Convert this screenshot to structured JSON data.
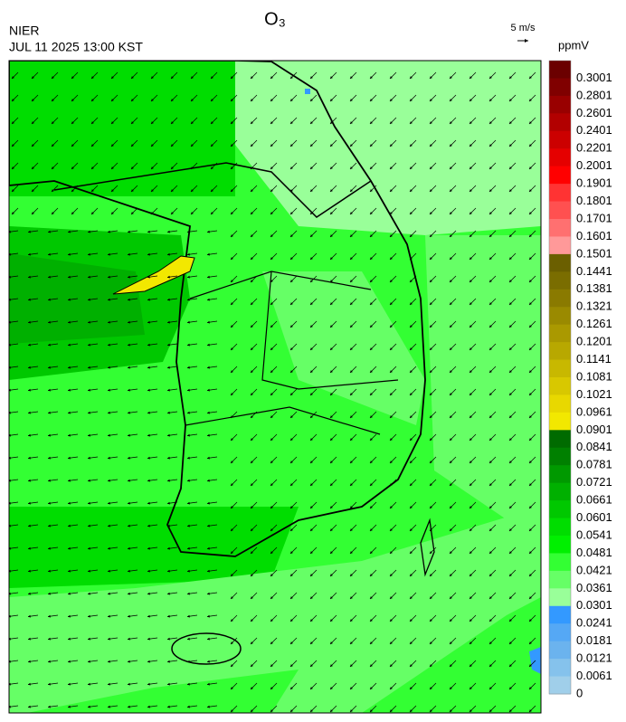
{
  "header": {
    "title": "O₃",
    "agency": "NIER",
    "timestamp": "JUL 11 2025 13:00 KST",
    "wind_scale": "5 m/s"
  },
  "colorbar": {
    "unit": "ppmV",
    "levels": [
      0.3001,
      0.2801,
      0.2601,
      0.2401,
      0.2201,
      0.2001,
      0.1901,
      0.1801,
      0.1701,
      0.1601,
      0.1501,
      0.1441,
      0.1381,
      0.1321,
      0.1261,
      0.1201,
      0.1141,
      0.1081,
      0.1021,
      0.0961,
      0.0901,
      0.0841,
      0.0781,
      0.0721,
      0.0661,
      0.0601,
      0.0541,
      0.0481,
      0.0421,
      0.0361,
      0.0301,
      0.0241,
      0.0181,
      0.0121,
      0.0061,
      0
    ],
    "colors": [
      "#6b0000",
      "#800000",
      "#990000",
      "#b20000",
      "#cc0000",
      "#e50000",
      "#ff0000",
      "#ff3333",
      "#ff5050",
      "#ff7070",
      "#ff9999",
      "#6b5f00",
      "#7a6d00",
      "#8a7a00",
      "#9a8a00",
      "#aa9900",
      "#b8a800",
      "#c8b800",
      "#d8c800",
      "#e8d800",
      "#f2e800",
      "#006b00",
      "#008000",
      "#009900",
      "#00b000",
      "#00c800",
      "#00dd00",
      "#00f000",
      "#33ff33",
      "#66ff66",
      "#99ff99",
      "#3399ff",
      "#55a8f5",
      "#6bb3ee",
      "#85c2ec",
      "#a0cfea"
    ]
  }
}
